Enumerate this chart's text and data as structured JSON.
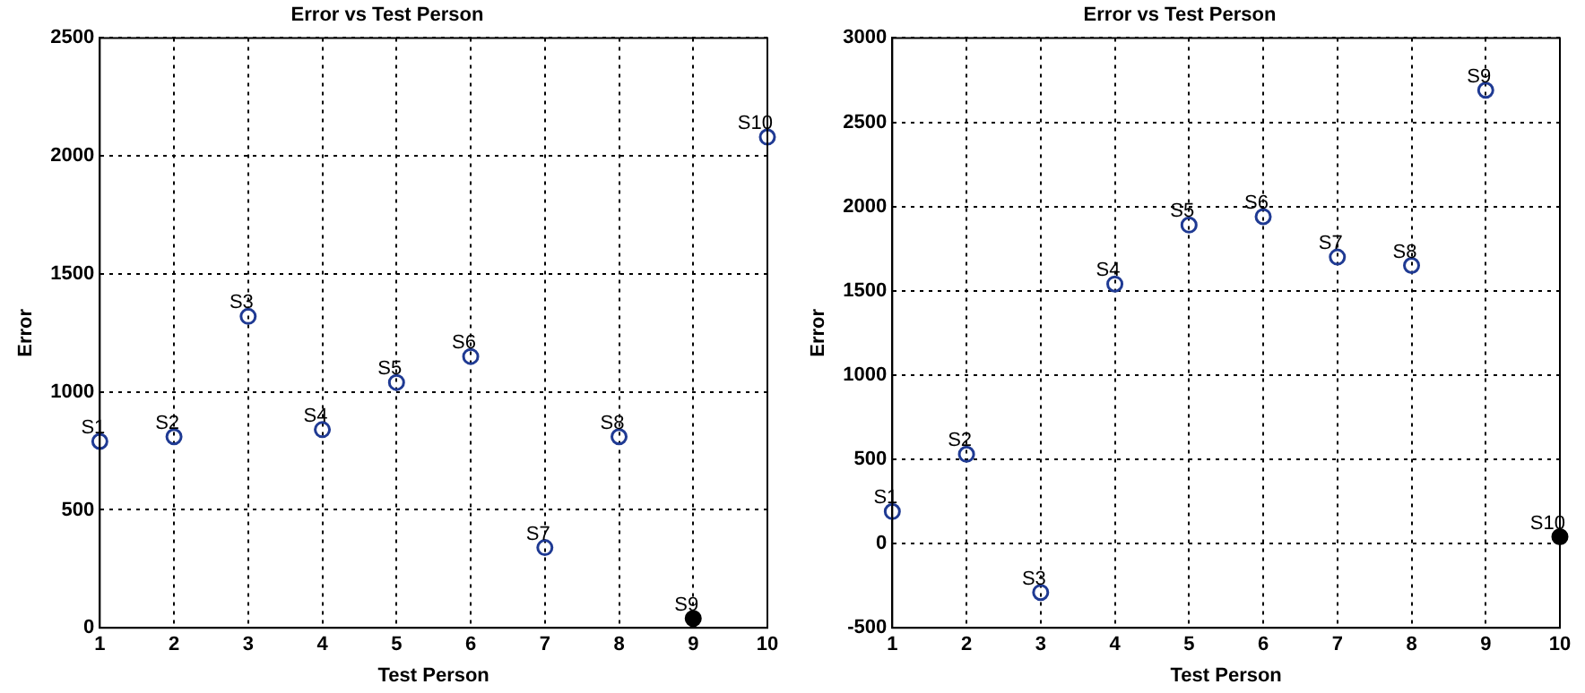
{
  "chart_data": [
    {
      "type": "scatter",
      "title": "Error vs Test Person",
      "xlabel": "Test Person",
      "ylabel": "Error",
      "x": [
        1,
        2,
        3,
        4,
        5,
        6,
        7,
        8,
        9,
        10
      ],
      "series": [
        {
          "color": "#1f3a93",
          "values": [
            790,
            810,
            1320,
            840,
            1040,
            1150,
            340,
            810,
            null,
            2080
          ]
        },
        {
          "color": "#000000",
          "values": [
            null,
            null,
            null,
            null,
            null,
            null,
            null,
            null,
            40,
            null
          ]
        }
      ],
      "xlim": [
        1,
        10
      ],
      "xticks": [
        1,
        2,
        3,
        4,
        5,
        6,
        7,
        8,
        9,
        10
      ],
      "ylim": [
        0,
        2500
      ],
      "yticks": [
        0,
        500,
        1000,
        1500,
        2000,
        2500
      ],
      "grid": true,
      "marker": "circle",
      "annotations": [
        {
          "text": "S1",
          "x": 1,
          "y": 790
        },
        {
          "text": "S2",
          "x": 2,
          "y": 810
        },
        {
          "text": "S3",
          "x": 3,
          "y": 1320
        },
        {
          "text": "S4",
          "x": 4,
          "y": 840
        },
        {
          "text": "S5",
          "x": 5,
          "y": 1040
        },
        {
          "text": "S6",
          "x": 6,
          "y": 1150
        },
        {
          "text": "S7",
          "x": 7,
          "y": 340
        },
        {
          "text": "S8",
          "x": 8,
          "y": 810
        },
        {
          "text": "S9",
          "x": 9,
          "y": 40
        },
        {
          "text": "S10",
          "x": 10,
          "y": 2080
        }
      ]
    },
    {
      "type": "scatter",
      "title": "Error vs Test Person",
      "xlabel": "Test Person",
      "ylabel": "Error",
      "x": [
        1,
        2,
        3,
        4,
        5,
        6,
        7,
        8,
        9,
        10
      ],
      "series": [
        {
          "color": "#1f3a93",
          "values": [
            190,
            530,
            -290,
            1540,
            1890,
            1940,
            1700,
            1650,
            2690,
            null
          ]
        },
        {
          "color": "#000000",
          "values": [
            null,
            null,
            null,
            null,
            null,
            null,
            null,
            null,
            null,
            40
          ]
        }
      ],
      "xlim": [
        1,
        10
      ],
      "xticks": [
        1,
        2,
        3,
        4,
        5,
        6,
        7,
        8,
        9,
        10
      ],
      "ylim": [
        -500,
        3000
      ],
      "yticks": [
        -500,
        0,
        500,
        1000,
        1500,
        2000,
        2500,
        3000
      ],
      "grid": true,
      "marker": "circle",
      "annotations": [
        {
          "text": "S1",
          "x": 1,
          "y": 190
        },
        {
          "text": "S2",
          "x": 2,
          "y": 530
        },
        {
          "text": "S3",
          "x": 3,
          "y": -290
        },
        {
          "text": "S4",
          "x": 4,
          "y": 1540
        },
        {
          "text": "S5",
          "x": 5,
          "y": 1890
        },
        {
          "text": "S6",
          "x": 6,
          "y": 1940
        },
        {
          "text": "S7",
          "x": 7,
          "y": 1700
        },
        {
          "text": "S8",
          "x": 8,
          "y": 1650
        },
        {
          "text": "S9",
          "x": 9,
          "y": 2690
        },
        {
          "text": "S10",
          "x": 10,
          "y": 40
        }
      ]
    }
  ]
}
